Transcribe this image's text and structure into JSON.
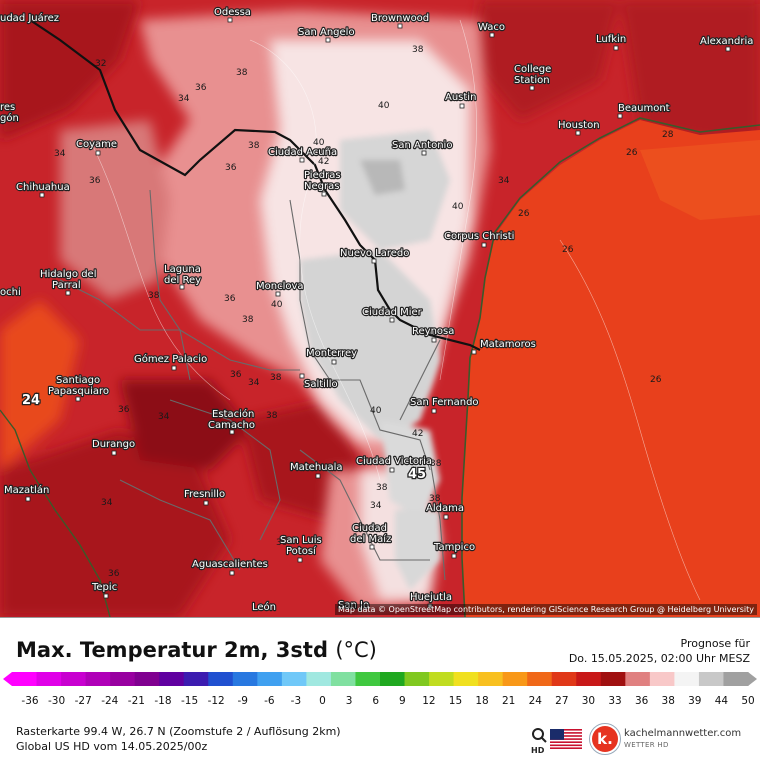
{
  "title": "Max. Temperatur 2m, 3std",
  "unit": "(°C)",
  "forecast": {
    "label": "Prognose für",
    "date": "Do. 15.05.2025, 02:00 Uhr MESZ"
  },
  "info": {
    "line1": "Rasterkarte 99.4 W, 26.7 N (Zoomstufe 2 / Auflösung 2km)",
    "line2": "Global US HD vom 14.05.2025/00z"
  },
  "attribution": "Map data © OpenStreetMap contributors, rendering GIScience Research Group @ Heidelberg University",
  "brand": {
    "name": "kachelmannwetter.com",
    "sub": "WETTER HD",
    "mark": "k."
  },
  "colors": {
    "gulf": "#e8401c",
    "hot_land": "#c8242a",
    "very_hot": "#8c1018",
    "warm_pink": "#e89a9a",
    "pale": "#f6dede",
    "grey_max": "#d4d4d4",
    "coast_line": "#3a5a2a",
    "border_line": "#1a1a1a"
  },
  "scale": {
    "ticks": [
      "-36",
      "-30",
      "-27",
      "-24",
      "-21",
      "-18",
      "-15",
      "-12",
      "-9",
      "-6",
      "-3",
      "0",
      "3",
      "6",
      "9",
      "12",
      "15",
      "18",
      "21",
      "24",
      "27",
      "30",
      "33",
      "36",
      "38",
      "39",
      "44",
      "50"
    ],
    "colors": [
      "#ff00ff",
      "#e000e8",
      "#c800d0",
      "#b000b8",
      "#9800a0",
      "#800090",
      "#6000a0",
      "#3c1cb0",
      "#2050d0",
      "#2878e0",
      "#40a0f0",
      "#70c8f8",
      "#a0e8e0",
      "#80e0a0",
      "#40c840",
      "#20a820",
      "#80c820",
      "#c0dc20",
      "#f0e020",
      "#f8c020",
      "#f89818",
      "#f06818",
      "#e03818",
      "#c81818",
      "#a01010",
      "#e08080",
      "#f8c8c8",
      "#f4f4f4",
      "#c8c8c8",
      "#a0a0a0"
    ]
  },
  "places": [
    {
      "name": "udad Juárez"
    },
    {
      "name": "Odessa"
    },
    {
      "name": "Brownwood"
    },
    {
      "name": "Waco"
    },
    {
      "name": "San Angelo"
    },
    {
      "name": "Lufkin"
    },
    {
      "name": "Alexandria"
    },
    {
      "name": "College"
    },
    {
      "name": "Station"
    },
    {
      "name": "Austin"
    },
    {
      "name": "Beaumont"
    },
    {
      "name": "Houston"
    },
    {
      "name": "San Antonio"
    },
    {
      "name": "Coyame"
    },
    {
      "name": "Ciudad Acuña"
    },
    {
      "name": "Piedras"
    },
    {
      "name": "Negras"
    },
    {
      "name": "Chihuahua"
    },
    {
      "name": "Corpus Christi"
    },
    {
      "name": "Nuevo Laredo"
    },
    {
      "name": "Laguna"
    },
    {
      "name": "del Rey"
    },
    {
      "name": "Hidalgo del"
    },
    {
      "name": "Parral"
    },
    {
      "name": "Monclova"
    },
    {
      "name": "Ciudad Mier"
    },
    {
      "name": "Reynosa"
    },
    {
      "name": "Matamoros"
    },
    {
      "name": "Gómez Palacio"
    },
    {
      "name": "Monterrey"
    },
    {
      "name": "Santiago"
    },
    {
      "name": "Papasquiaro"
    },
    {
      "name": "Saltillo"
    },
    {
      "name": "San Fernando"
    },
    {
      "name": "Estación"
    },
    {
      "name": "Camacho"
    },
    {
      "name": "Durango"
    },
    {
      "name": "Matehuala"
    },
    {
      "name": "Ciudad Victoria"
    },
    {
      "name": "Mazatlán"
    },
    {
      "name": "Fresnillo"
    },
    {
      "name": "Aldama"
    },
    {
      "name": "Ciudad"
    },
    {
      "name": "del Maíz"
    },
    {
      "name": "San Luis"
    },
    {
      "name": "Potosí"
    },
    {
      "name": "Tampico"
    },
    {
      "name": "Aguascalientes"
    },
    {
      "name": "Tepic"
    },
    {
      "name": "León"
    },
    {
      "name": "San Jo"
    },
    {
      "name": "Huejutla"
    },
    {
      "name": "res"
    },
    {
      "name": "gón"
    },
    {
      "name": "ochi"
    }
  ],
  "isolines": [
    "38",
    "40",
    "36",
    "34",
    "32",
    "38",
    "42",
    "40",
    "34",
    "36",
    "40",
    "34",
    "36",
    "38",
    "40",
    "38",
    "36",
    "26",
    "26",
    "26",
    "36",
    "38",
    "38",
    "34",
    "34",
    "42",
    "38",
    "38",
    "40",
    "36",
    "34",
    "38",
    "36",
    "28",
    "26",
    "34",
    "30",
    "36",
    "38",
    "24",
    "45"
  ]
}
